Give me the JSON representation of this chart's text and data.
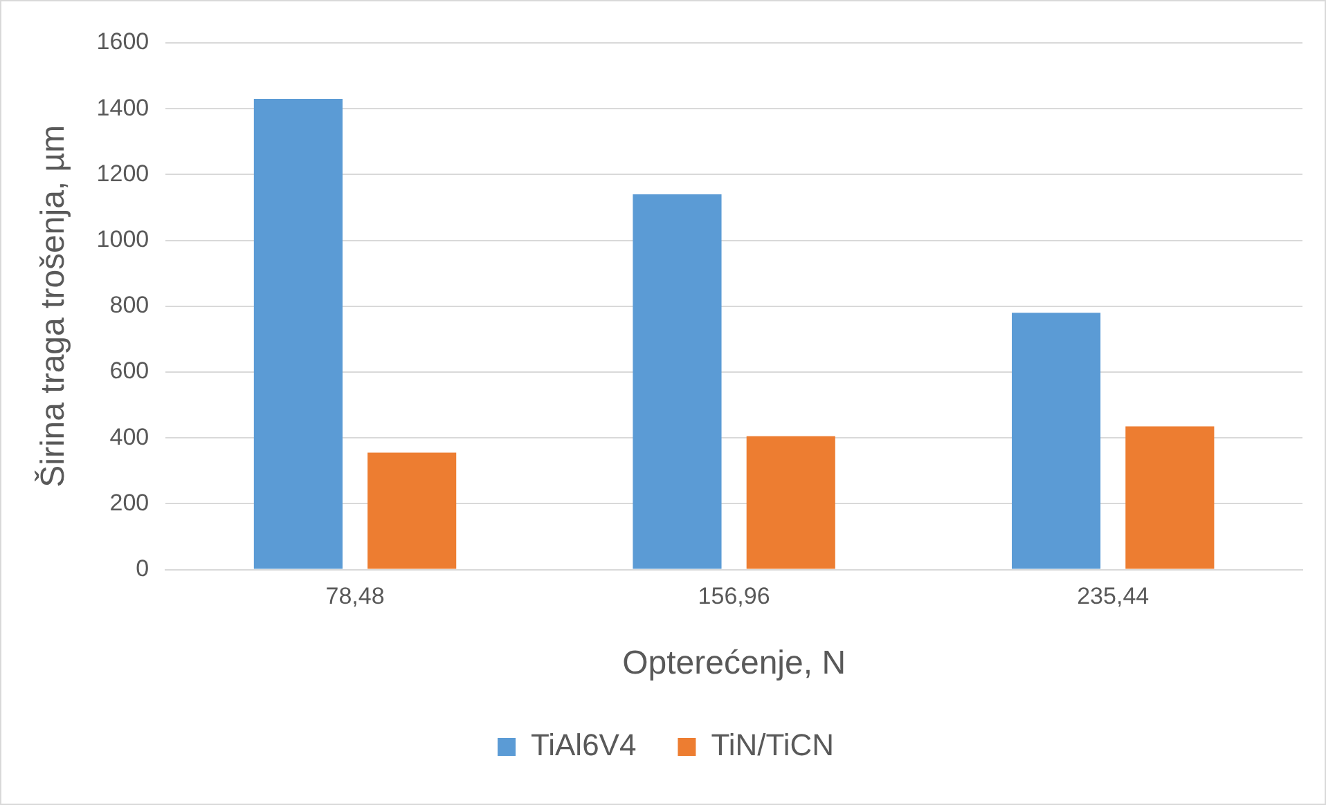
{
  "chart_data": {
    "type": "bar",
    "xlabel": "Opterećenje, N",
    "ylabel": "Širina traga trošenja, µm",
    "categories": [
      "78,48",
      "156,96",
      "235,44"
    ],
    "series": [
      {
        "name": "TiAl6V4",
        "color": "#5b9bd5",
        "values": [
          1430,
          1140,
          780
        ]
      },
      {
        "name": "TiN/TiCN",
        "color": "#ed7d31",
        "values": [
          355,
          405,
          435
        ]
      }
    ],
    "ylim": [
      0,
      1600
    ],
    "yticks": [
      0,
      200,
      400,
      600,
      800,
      1000,
      1200,
      1400,
      1600
    ],
    "grid": "y",
    "legend": "bottom"
  }
}
